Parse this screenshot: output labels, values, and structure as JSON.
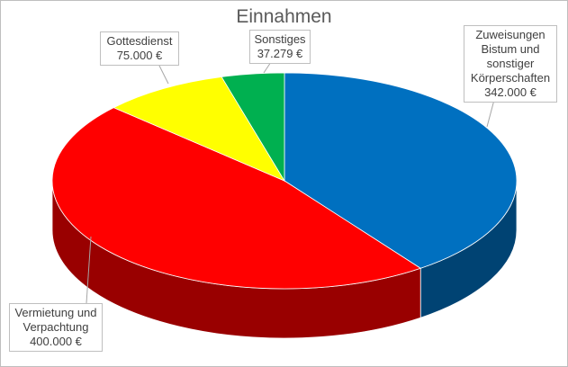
{
  "chart_data": {
    "type": "pie",
    "title": "Einnahmen",
    "categories": [
      "Zuweisungen Bistum und sonstiger Körperschaften",
      "Vermietung und Verpachtung",
      "Gottesdienst",
      "Sonstiges"
    ],
    "values": [
      342000,
      400000,
      75000,
      37279
    ],
    "value_labels": [
      "342.000 €",
      "400.000 €",
      "75.000 €",
      "37.279 €"
    ],
    "colors": [
      "#0070c0",
      "#ff0000",
      "#ffff00",
      "#00b050"
    ]
  }
}
